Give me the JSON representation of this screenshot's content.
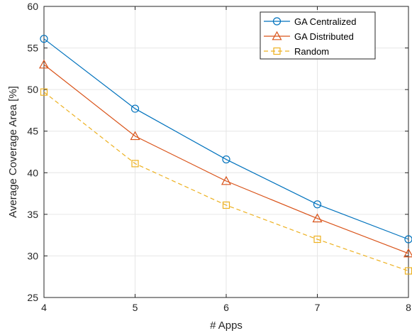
{
  "chart_data": {
    "type": "line",
    "xlabel": "# Apps",
    "ylabel": "Average Coverage Area [%]",
    "x": [
      4,
      5,
      6,
      7,
      8
    ],
    "xlim": [
      4,
      8
    ],
    "ylim": [
      25,
      60
    ],
    "xticks": [
      "4",
      "5",
      "6",
      "7",
      "8"
    ],
    "yticks": [
      "25",
      "30",
      "35",
      "40",
      "45",
      "50",
      "55",
      "60"
    ],
    "grid": true,
    "legend_position": "top-right",
    "series": [
      {
        "name": "GA Centralized",
        "values": [
          56.1,
          47.7,
          41.6,
          36.2,
          32.0
        ],
        "color": "#0072BD",
        "marker": "circle",
        "line": "solid"
      },
      {
        "name": "GA Distributed",
        "values": [
          53.0,
          44.4,
          39.0,
          34.5,
          30.3
        ],
        "color": "#D95319",
        "marker": "triangle",
        "line": "solid"
      },
      {
        "name": "Random",
        "values": [
          49.7,
          41.1,
          36.1,
          32.0,
          28.2
        ],
        "color": "#EDB120",
        "marker": "square",
        "line": "dashed"
      }
    ]
  }
}
